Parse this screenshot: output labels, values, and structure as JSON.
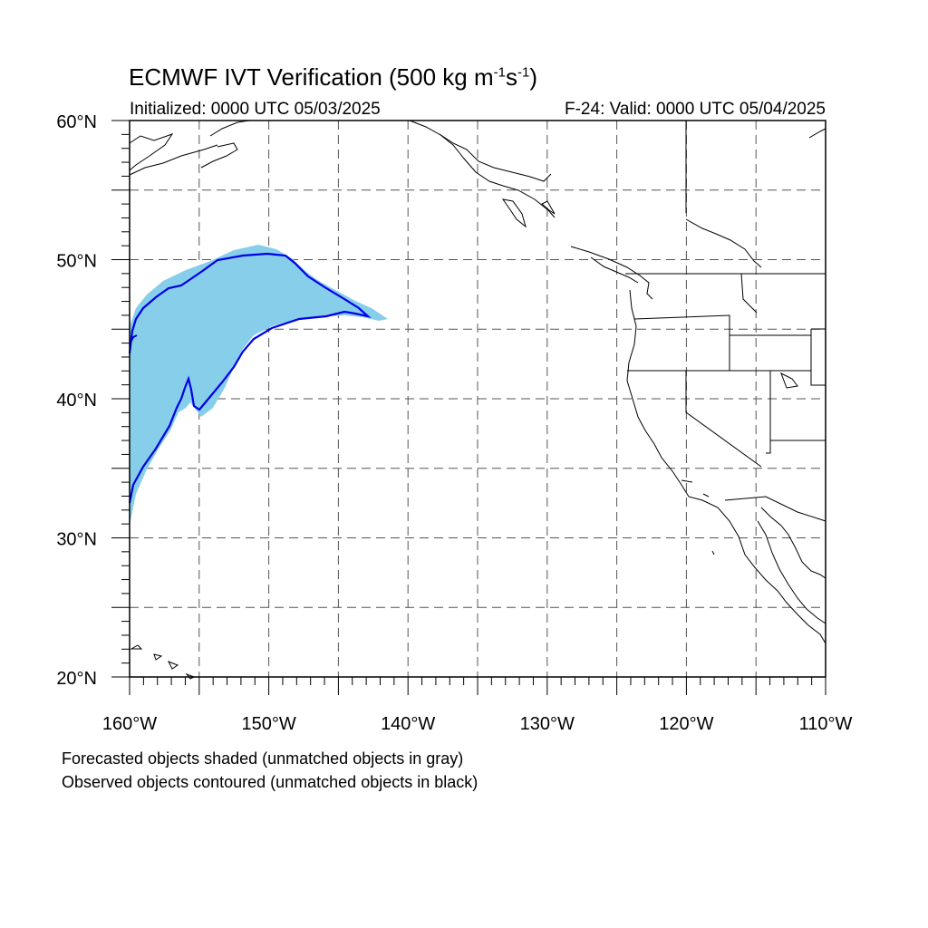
{
  "title": {
    "main": "ECMWF IVT Verification (500 kg m",
    "exp1": "-1",
    "mid": "s",
    "exp2": "-1",
    "close": ")"
  },
  "initialized": "Initialized: 0000 UTC 05/03/2025",
  "valid": "F-24: Valid: 0000 UTC 05/04/2025",
  "map": {
    "lon_range": [
      -160,
      -110
    ],
    "lat_range": [
      20,
      60
    ],
    "lat_labels": [
      {
        "lat": 60,
        "text": "60°N"
      },
      {
        "lat": 50,
        "text": "50°N"
      },
      {
        "lat": 40,
        "text": "40°N"
      },
      {
        "lat": 30,
        "text": "30°N"
      },
      {
        "lat": 20,
        "text": "20°N"
      }
    ],
    "lon_labels": [
      {
        "lon": -160,
        "text": "160°W"
      },
      {
        "lon": -150,
        "text": "150°W"
      },
      {
        "lon": -140,
        "text": "140°W"
      },
      {
        "lon": -130,
        "text": "130°W"
      },
      {
        "lon": -120,
        "text": "120°W"
      },
      {
        "lon": -110,
        "text": "110°W"
      }
    ],
    "gridlines": "dashed every 5°",
    "forecast_color": "#87ceeb",
    "observed_color": "#0000e6"
  },
  "footnotes": [
    "Forecasted objects shaded (unmatched objects in gray)",
    "Observed objects contoured (unmatched objects in black)"
  ]
}
